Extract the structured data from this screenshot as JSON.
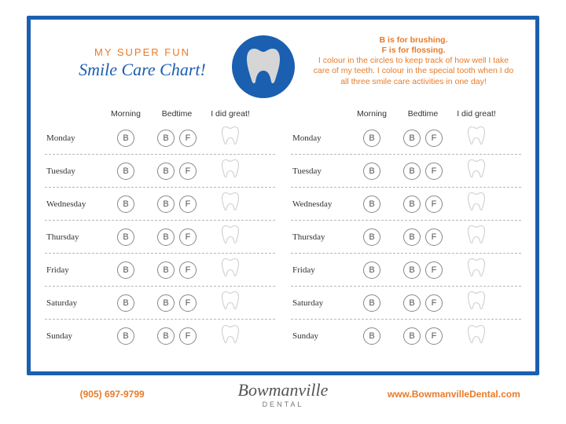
{
  "header": {
    "pre_title": "MY SUPER FUN",
    "title": "Smile Care Chart!",
    "instr_line1": "B is for brushing.",
    "instr_line2": "F is for flossing.",
    "instr_body": "I colour in the circles to keep track of how well I take care of my teeth.  I colour in the special tooth when I do all three smile care activities in one day!"
  },
  "columns": {
    "morning": "Morning",
    "bedtime": "Bedtime",
    "great": "I did great!"
  },
  "labels": {
    "brush": "B",
    "floss": "F"
  },
  "days": [
    "Monday",
    "Tuesday",
    "Wednesday",
    "Thursday",
    "Friday",
    "Saturday",
    "Sunday"
  ],
  "footer": {
    "phone": "(905) 697-9799",
    "logo_main": "Bowmanville",
    "logo_sub": "DENTAL",
    "url": "www.BowmanvilleDental.com"
  },
  "colors": {
    "primary": "#1b5fb0",
    "accent": "#e77b2a",
    "circle_border": "#888888",
    "dash": "#b8b8b8",
    "tooth_fill": "#d6d6d6",
    "tooth_outline": "#cfcfcf"
  }
}
